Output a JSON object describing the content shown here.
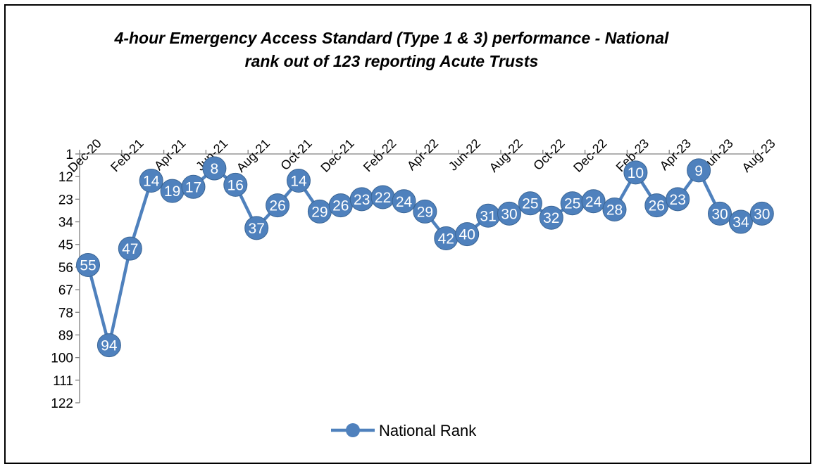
{
  "chart_data": {
    "type": "line",
    "title_line1": "4-hour Emergency Access Standard (Type 1 & 3) performance - National",
    "title_line2": "rank out of 123 reporting Acute Trusts",
    "y_axis": {
      "inverted": true,
      "range": [
        1,
        122
      ],
      "ticks": [
        1,
        12,
        23,
        34,
        45,
        56,
        67,
        78,
        89,
        100,
        111,
        122
      ]
    },
    "x_tick_labels": [
      "Dec-20",
      "Feb-21",
      "Apr-21",
      "Jun-21",
      "Aug-21",
      "Oct-21",
      "Dec-21",
      "Feb-22",
      "Apr-22",
      "Jun-22",
      "Aug-22",
      "Oct-22",
      "Dec-22",
      "Feb-23",
      "Apr-23",
      "Jun-23",
      "Aug-23"
    ],
    "series": [
      {
        "name": "National Rank",
        "color": "#4f81bd",
        "values": [
          55,
          94,
          47,
          14,
          19,
          17,
          8,
          16,
          37,
          26,
          14,
          29,
          26,
          23,
          22,
          24,
          29,
          42,
          40,
          31,
          30,
          25,
          32,
          25,
          24,
          28,
          10,
          26,
          23,
          9,
          30,
          34,
          30
        ]
      }
    ],
    "grid": false,
    "legend": {
      "position": "bottom",
      "label": "National Rank"
    }
  }
}
